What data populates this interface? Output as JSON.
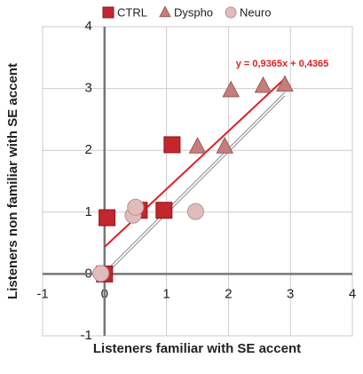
{
  "chart_data": {
    "type": "scatter",
    "xlabel": "Listeners familiar with SE accent",
    "ylabel": "Listeners non familiar with SE accent",
    "xlim": [
      -1,
      4
    ],
    "xticks": [
      -1,
      0,
      1,
      2,
      3,
      4
    ],
    "ylim": [
      -1,
      4
    ],
    "yticks": [
      -1,
      0,
      1,
      2,
      3,
      4
    ],
    "grid": true,
    "legend": "top",
    "series": [
      {
        "name": "CTRL",
        "color": "#c3262c",
        "marker": "square",
        "x": [
          0,
          0.04,
          0.56,
          0.96,
          1.09
        ],
        "values": [
          0,
          0.91,
          1.03,
          1.03,
          2.09
        ]
      },
      {
        "name": "Dyspho",
        "color": "#c47e7c",
        "marker": "triangle",
        "x": [
          1.5,
          1.94,
          2.04,
          2.56,
          2.91
        ],
        "values": [
          2.06,
          2.06,
          2.97,
          3.04,
          3.06
        ]
      },
      {
        "name": "Neuro",
        "color": "#e2bcbc",
        "marker": "circle",
        "x": [
          -0.06,
          0.46,
          0.5,
          1.47
        ],
        "values": [
          0.01,
          0.95,
          1.08,
          1.01
        ]
      }
    ],
    "trendline": {
      "label": "y = 0,9365x + 0,4365",
      "slope": 0.9365,
      "intercept": 0.4365,
      "color": "#e02020"
    }
  }
}
